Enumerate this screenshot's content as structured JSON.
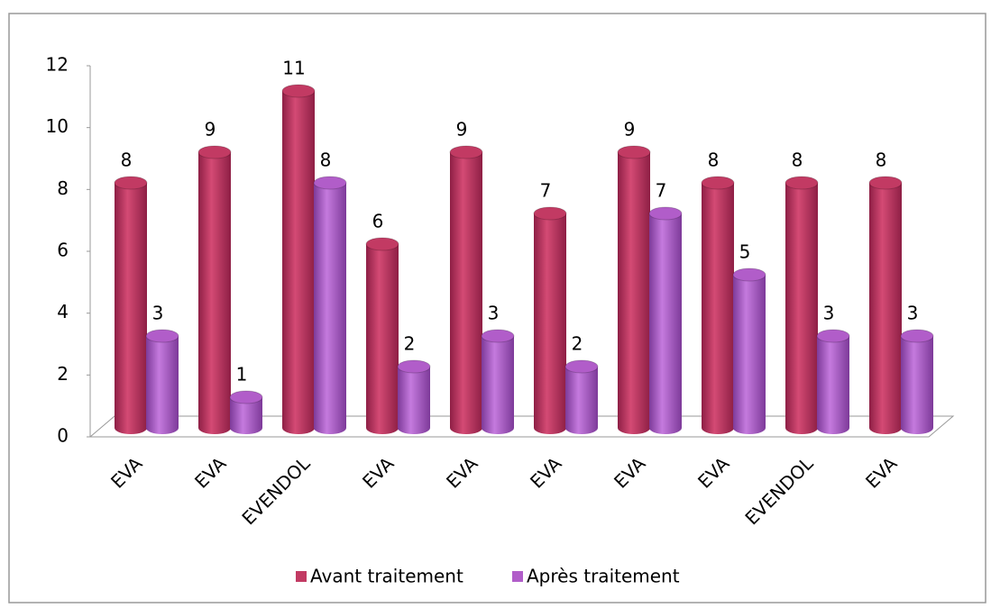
{
  "chart_data": {
    "type": "bar3d",
    "categories": [
      "EVA",
      "EVA",
      "EVENDOL",
      "EVA",
      "EVA",
      "EVA",
      "EVA",
      "EVA",
      "EVENDOL",
      "EVA"
    ],
    "series": [
      {
        "name": "Avant traitement",
        "color": "#c23a63",
        "values": [
          8,
          9,
          11,
          6,
          9,
          7,
          9,
          8,
          8,
          8
        ]
      },
      {
        "name": "Après traitement",
        "color": "#b15dc9",
        "values": [
          3,
          1,
          8,
          2,
          3,
          2,
          7,
          5,
          3,
          3
        ]
      }
    ],
    "ylim": [
      0,
      12
    ],
    "yticks": [
      0,
      2,
      4,
      6,
      8,
      10,
      12
    ],
    "legend": "bottom"
  }
}
